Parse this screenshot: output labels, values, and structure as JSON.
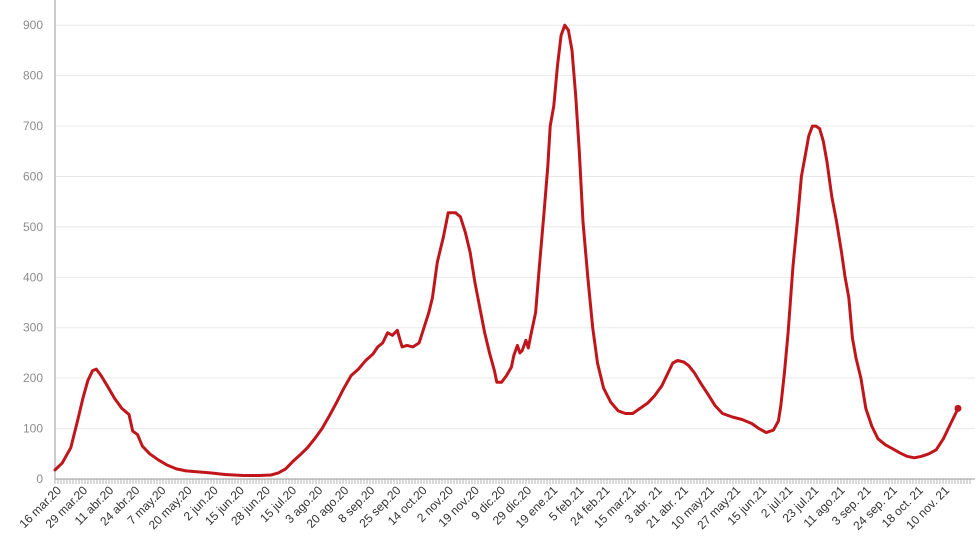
{
  "chart_data": {
    "type": "line",
    "title": "",
    "xlabel": "",
    "ylabel": "",
    "ylim": [
      0,
      950
    ],
    "y_ticks": [
      0,
      100,
      200,
      300,
      400,
      500,
      600,
      700,
      800,
      900
    ],
    "grid": true,
    "legend": "none",
    "line_color": "#c0161b",
    "x_tick_labels": [
      "16 mar.20",
      "29 mar.20",
      "11 abr.20",
      "24 abr.20",
      "7 may.20",
      "20 may.20",
      "2 jun.20",
      "15 jun.20",
      "28 jun.20",
      "15 jul.20",
      "3 ago.20",
      "20 ago.20",
      "8 sep.20",
      "25 sep.20",
      "14 oct.20",
      "2 nov.20",
      "19 nov.20",
      "9 dic.20",
      "29 dic.20",
      "19 ene.21",
      "5 feb.21",
      "24 feb.21",
      "15 mar.21",
      "3 abr. 21",
      "21 abr. 21",
      "10 may.21",
      "27 may.21",
      "15 jun.21",
      "2 jul.21",
      "23 jul.21",
      "11 ago.21",
      "3 sep. 21",
      "24 sep. 21",
      "18 oct. 21",
      "10 nov. 21"
    ],
    "series": [
      {
        "values": [
          [
            0,
            18
          ],
          [
            6,
            32
          ],
          [
            13,
            62
          ],
          [
            19,
            120
          ],
          [
            23,
            160
          ],
          [
            27,
            195
          ],
          [
            31,
            215
          ],
          [
            34,
            218
          ],
          [
            38,
            205
          ],
          [
            43,
            185
          ],
          [
            49,
            160
          ],
          [
            55,
            140
          ],
          [
            61,
            128
          ],
          [
            64,
            95
          ],
          [
            68,
            88
          ],
          [
            72,
            65
          ],
          [
            78,
            50
          ],
          [
            85,
            38
          ],
          [
            92,
            28
          ],
          [
            100,
            20
          ],
          [
            108,
            16
          ],
          [
            118,
            14
          ],
          [
            128,
            12
          ],
          [
            140,
            9
          ],
          [
            155,
            7
          ],
          [
            168,
            7
          ],
          [
            178,
            8
          ],
          [
            184,
            12
          ],
          [
            190,
            20
          ],
          [
            196,
            35
          ],
          [
            202,
            48
          ],
          [
            208,
            62
          ],
          [
            214,
            80
          ],
          [
            220,
            100
          ],
          [
            226,
            125
          ],
          [
            232,
            152
          ],
          [
            238,
            180
          ],
          [
            244,
            205
          ],
          [
            250,
            218
          ],
          [
            256,
            235
          ],
          [
            262,
            248
          ],
          [
            266,
            262
          ],
          [
            270,
            270
          ],
          [
            274,
            290
          ],
          [
            278,
            285
          ],
          [
            282,
            295
          ],
          [
            284,
            278
          ],
          [
            286,
            262
          ],
          [
            290,
            265
          ],
          [
            295,
            262
          ],
          [
            300,
            270
          ],
          [
            304,
            300
          ],
          [
            308,
            330
          ],
          [
            311,
            360
          ],
          [
            315,
            430
          ],
          [
            320,
            480
          ],
          [
            324,
            528
          ],
          [
            330,
            528
          ],
          [
            334,
            520
          ],
          [
            338,
            490
          ],
          [
            342,
            450
          ],
          [
            346,
            390
          ],
          [
            350,
            340
          ],
          [
            354,
            290
          ],
          [
            358,
            250
          ],
          [
            362,
            215
          ],
          [
            364,
            192
          ],
          [
            368,
            192
          ],
          [
            372,
            205
          ],
          [
            376,
            222
          ],
          [
            378,
            245
          ],
          [
            381,
            265
          ],
          [
            383,
            250
          ],
          [
            385,
            255
          ],
          [
            388,
            275
          ],
          [
            390,
            260
          ],
          [
            392,
            285
          ],
          [
            396,
            330
          ],
          [
            399,
            420
          ],
          [
            403,
            530
          ],
          [
            406,
            620
          ],
          [
            408,
            700
          ],
          [
            411,
            740
          ],
          [
            414,
            820
          ],
          [
            417,
            880
          ],
          [
            420,
            900
          ],
          [
            423,
            890
          ],
          [
            426,
            850
          ],
          [
            429,
            760
          ],
          [
            432,
            650
          ],
          [
            435,
            510
          ],
          [
            439,
            400
          ],
          [
            443,
            300
          ],
          [
            447,
            230
          ],
          [
            452,
            180
          ],
          [
            458,
            152
          ],
          [
            464,
            135
          ],
          [
            470,
            130
          ],
          [
            476,
            130
          ],
          [
            482,
            140
          ],
          [
            488,
            150
          ],
          [
            494,
            165
          ],
          [
            500,
            185
          ],
          [
            505,
            210
          ],
          [
            509,
            230
          ],
          [
            513,
            235
          ],
          [
            518,
            232
          ],
          [
            522,
            225
          ],
          [
            527,
            210
          ],
          [
            532,
            190
          ],
          [
            538,
            168
          ],
          [
            544,
            145
          ],
          [
            550,
            130
          ],
          [
            558,
            123
          ],
          [
            566,
            118
          ],
          [
            574,
            110
          ],
          [
            580,
            100
          ],
          [
            586,
            92
          ],
          [
            592,
            97
          ],
          [
            596,
            115
          ],
          [
            598,
            145
          ],
          [
            601,
            210
          ],
          [
            604,
            290
          ],
          [
            608,
            420
          ],
          [
            612,
            520
          ],
          [
            615,
            600
          ],
          [
            618,
            640
          ],
          [
            621,
            680
          ],
          [
            624,
            700
          ],
          [
            627,
            700
          ],
          [
            630,
            695
          ],
          [
            633,
            670
          ],
          [
            636,
            630
          ],
          [
            640,
            560
          ],
          [
            644,
            510
          ],
          [
            648,
            450
          ],
          [
            651,
            400
          ],
          [
            654,
            360
          ],
          [
            657,
            280
          ],
          [
            660,
            240
          ],
          [
            664,
            200
          ],
          [
            668,
            140
          ],
          [
            673,
            105
          ],
          [
            678,
            80
          ],
          [
            684,
            68
          ],
          [
            690,
            60
          ],
          [
            696,
            52
          ],
          [
            702,
            45
          ],
          [
            708,
            42
          ],
          [
            714,
            45
          ],
          [
            720,
            50
          ],
          [
            726,
            58
          ],
          [
            732,
            80
          ],
          [
            738,
            110
          ],
          [
            742,
            130
          ],
          [
            744,
            140
          ]
        ]
      }
    ]
  }
}
